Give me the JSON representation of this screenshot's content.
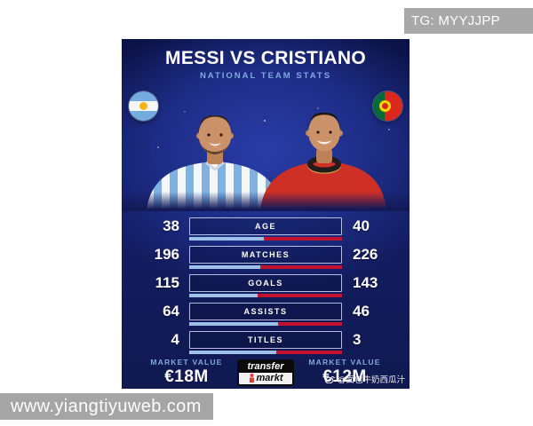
{
  "overlays": {
    "tg_badge": "TG: MYYJJPP",
    "watermark": "www.yiangtiyuweb.com"
  },
  "card": {
    "title": "MESSI VS CRISTIANO",
    "subtitle": "NATIONAL TEAM STATS",
    "weibo_credit": "@面包牛奶西瓜汁",
    "colors": {
      "background_navy": "#121b5c",
      "background_glow": "#2a3da8",
      "accent_text": "#7fa9de",
      "bar_left": "#9cc2ea",
      "bar_right": "#c3122f"
    }
  },
  "players": {
    "left": {
      "name": "Messi",
      "flag": "argentina-flag"
    },
    "right": {
      "name": "Cristiano",
      "flag": "portugal-flag"
    }
  },
  "stats": {
    "rows": [
      {
        "label": "AGE",
        "left": "38",
        "right": "40"
      },
      {
        "label": "MATCHES",
        "left": "196",
        "right": "226"
      },
      {
        "label": "GOALS",
        "left": "115",
        "right": "143"
      },
      {
        "label": "ASSISTS",
        "left": "64",
        "right": "46"
      },
      {
        "label": "TITLES",
        "left": "4",
        "right": "3"
      }
    ]
  },
  "market": {
    "label": "MARKET VALUE",
    "left_value": "€18M",
    "right_value": "€12M",
    "logo_top": "transfer",
    "logo_bottom": "markt"
  },
  "chart_data": {
    "type": "bar",
    "title": "MESSI VS CRISTIANO",
    "subtitle": "NATIONAL TEAM STATS",
    "categories": [
      "AGE",
      "MATCHES",
      "GOALS",
      "ASSISTS",
      "TITLES"
    ],
    "series": [
      {
        "name": "Messi (Argentina)",
        "values": [
          38,
          196,
          115,
          64,
          4
        ]
      },
      {
        "name": "Cristiano (Portugal)",
        "values": [
          40,
          226,
          143,
          46,
          3
        ]
      }
    ],
    "annotations": {
      "market_value_left": "€18M",
      "market_value_right": "€12M"
    },
    "layout": "paired horizontal comparison bars, left=blue (Messi), right=red (Cristiano)",
    "legend_position": "none"
  }
}
